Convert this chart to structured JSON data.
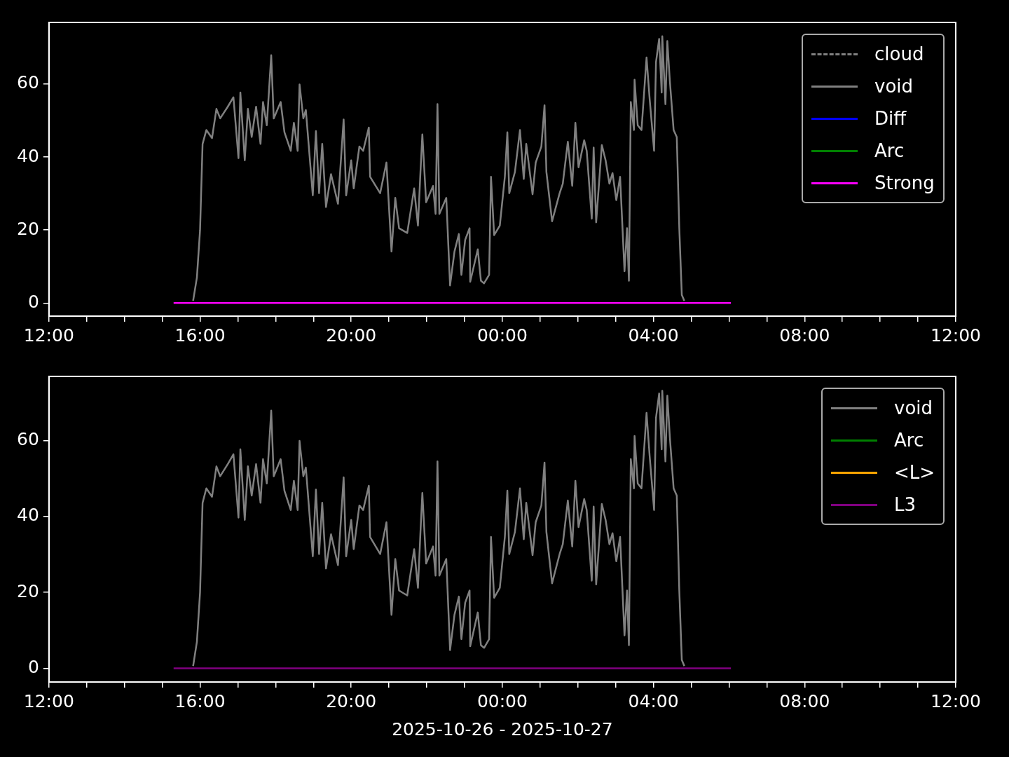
{
  "chart_data": [
    {
      "type": "line",
      "legend": "top right",
      "grid": false,
      "ylim": [
        -3.6,
        76.9
      ],
      "yticks": [
        0,
        20,
        40,
        60
      ],
      "xlim": [
        "2025-10-26T12:00",
        "2025-10-27T12:00"
      ],
      "xticks": [
        {
          "value": "2025-10-26T12:00",
          "label": "12:00"
        },
        {
          "value": "2025-10-26T13:00",
          "label": null
        },
        {
          "value": "2025-10-26T14:00",
          "label": null
        },
        {
          "value": "2025-10-26T15:00",
          "label": null
        },
        {
          "value": "2025-10-26T16:00",
          "label": "16:00"
        },
        {
          "value": "2025-10-26T17:00",
          "label": null
        },
        {
          "value": "2025-10-26T18:00",
          "label": null
        },
        {
          "value": "2025-10-26T19:00",
          "label": null
        },
        {
          "value": "2025-10-26T20:00",
          "label": "20:00"
        },
        {
          "value": "2025-10-26T21:00",
          "label": null
        },
        {
          "value": "2025-10-26T22:00",
          "label": null
        },
        {
          "value": "2025-10-26T23:00",
          "label": null
        },
        {
          "value": "2025-10-27T00:00",
          "label": "00:00"
        },
        {
          "value": "2025-10-27T01:00",
          "label": null
        },
        {
          "value": "2025-10-27T02:00",
          "label": null
        },
        {
          "value": "2025-10-27T03:00",
          "label": null
        },
        {
          "value": "2025-10-27T04:00",
          "label": "04:00"
        },
        {
          "value": "2025-10-27T05:00",
          "label": null
        },
        {
          "value": "2025-10-27T06:00",
          "label": null
        },
        {
          "value": "2025-10-27T07:00",
          "label": null
        },
        {
          "value": "2025-10-27T08:00",
          "label": "08:00"
        },
        {
          "value": "2025-10-27T09:00",
          "label": null
        },
        {
          "value": "2025-10-27T10:00",
          "label": null
        },
        {
          "value": "2025-10-27T11:00",
          "label": null
        },
        {
          "value": "2025-10-27T12:00",
          "label": "12:00"
        }
      ],
      "series": [
        {
          "name": "cloud",
          "color": "#808080",
          "line_style": "dashed",
          "values": [
            null
          ]
        },
        {
          "name": "void",
          "color": "#808080",
          "x": [
            "2025-10-26T15:49",
            "2025-10-26T15:55",
            "2025-10-26T16:00",
            "2025-10-26T16:04",
            "2025-10-26T16:10",
            "2025-10-26T16:19",
            "2025-10-26T16:26",
            "2025-10-26T16:32",
            "2025-10-26T16:44",
            "2025-10-26T16:53",
            "2025-10-26T17:01",
            "2025-10-26T17:04",
            "2025-10-26T17:11",
            "2025-10-26T17:16",
            "2025-10-26T17:22",
            "2025-10-26T17:29",
            "2025-10-26T17:36",
            "2025-10-26T17:40",
            "2025-10-26T17:46",
            "2025-10-26T17:53",
            "2025-10-26T17:57",
            "2025-10-26T18:08",
            "2025-10-26T18:14",
            "2025-10-26T18:24",
            "2025-10-26T18:29",
            "2025-10-26T18:35",
            "2025-10-26T18:38",
            "2025-10-26T18:44",
            "2025-10-26T18:48",
            "2025-10-26T18:59",
            "2025-10-26T19:04",
            "2025-10-26T19:09",
            "2025-10-26T19:14",
            "2025-10-26T19:20",
            "2025-10-26T19:28",
            "2025-10-26T19:39",
            "2025-10-26T19:48",
            "2025-10-26T19:52",
            "2025-10-26T20:00",
            "2025-10-26T20:04",
            "2025-10-26T20:13",
            "2025-10-26T20:19",
            "2025-10-26T20:28",
            "2025-10-26T20:30",
            "2025-10-26T20:46",
            "2025-10-26T20:56",
            "2025-10-26T21:04",
            "2025-10-26T21:10",
            "2025-10-26T21:16",
            "2025-10-26T21:29",
            "2025-10-26T21:40",
            "2025-10-26T21:46",
            "2025-10-26T21:50",
            "2025-10-26T21:53",
            "2025-10-26T21:59",
            "2025-10-26T22:10",
            "2025-10-26T22:14",
            "2025-10-26T22:17",
            "2025-10-26T22:20",
            "2025-10-26T22:31",
            "2025-10-26T22:37",
            "2025-10-26T22:44",
            "2025-10-26T22:51",
            "2025-10-26T22:55",
            "2025-10-26T23:01",
            "2025-10-26T23:08",
            "2025-10-26T23:09",
            "2025-10-26T23:21",
            "2025-10-26T23:26",
            "2025-10-26T23:31",
            "2025-10-26T23:39",
            "2025-10-26T23:42",
            "2025-10-26T23:47",
            "2025-10-26T23:56",
            "2025-10-27T00:04",
            "2025-10-27T00:08",
            "2025-10-27T00:11",
            "2025-10-27T00:20",
            "2025-10-27T00:28",
            "2025-10-27T00:34",
            "2025-10-27T00:38",
            "2025-10-27T00:48",
            "2025-10-27T00:53",
            "2025-10-27T01:02",
            "2025-10-27T01:07",
            "2025-10-27T01:10",
            "2025-10-27T01:19",
            "2025-10-27T01:31",
            "2025-10-27T01:36",
            "2025-10-27T01:44",
            "2025-10-27T01:51",
            "2025-10-27T01:56",
            "2025-10-27T02:01",
            "2025-10-27T02:10",
            "2025-10-27T02:14",
            "2025-10-27T02:22",
            "2025-10-27T02:25",
            "2025-10-27T02:29",
            "2025-10-27T02:38",
            "2025-10-27T02:44",
            "2025-10-27T02:50",
            "2025-10-27T02:55",
            "2025-10-27T03:01",
            "2025-10-27T03:07",
            "2025-10-27T03:14",
            "2025-10-27T03:18",
            "2025-10-27T03:21",
            "2025-10-27T03:24",
            "2025-10-27T03:29",
            "2025-10-27T03:30",
            "2025-10-27T03:35",
            "2025-10-27T03:41",
            "2025-10-27T03:49",
            "2025-10-27T03:54",
            "2025-10-27T04:01",
            "2025-10-27T04:04",
            "2025-10-27T04:09",
            "2025-10-27T04:13",
            "2025-10-27T04:14",
            "2025-10-27T04:19",
            "2025-10-27T04:22",
            "2025-10-27T04:26",
            "2025-10-27T04:32",
            "2025-10-27T04:37",
            "2025-10-27T04:41",
            "2025-10-27T04:45",
            "2025-10-27T04:49"
          ],
          "values": [
            0.6,
            7,
            20,
            43.6,
            47.4,
            45.2,
            53.2,
            50.6,
            53.8,
            56.4,
            39.7,
            57.7,
            39.1,
            53.2,
            45.5,
            53.8,
            43.6,
            55.1,
            48.7,
            67.9,
            50.6,
            55.1,
            46.8,
            41.7,
            49.4,
            41.7,
            59.9,
            50.6,
            52.9,
            29.5,
            47.1,
            30.1,
            43.6,
            26.3,
            35.3,
            27.2,
            50.3,
            29.5,
            39.1,
            31.4,
            42.9,
            41.7,
            48.1,
            34.6,
            30.1,
            38.5,
            14.1,
            28.8,
            20.5,
            19.2,
            31.4,
            21.2,
            35.9,
            46.2,
            27.6,
            32.1,
            24.4,
            54.5,
            24.4,
            28.8,
            4.8,
            14.1,
            18.9,
            7.7,
            17.3,
            20.5,
            5.8,
            14.7,
            6.1,
            5.4,
            7.7,
            34.6,
            18.6,
            21.2,
            34.6,
            46.8,
            30.1,
            35.9,
            47.4,
            34,
            43.6,
            29.8,
            38.5,
            42.9,
            54.2,
            35.9,
            22.4,
            30.1,
            32.7,
            44.2,
            32.1,
            49.4,
            37.2,
            44.6,
            41.7,
            23.1,
            42.6,
            22.1,
            43.3,
            39.1,
            32.7,
            35.6,
            28.2,
            34.6,
            8.7,
            20.5,
            6.1,
            55.1,
            47.4,
            61.2,
            48.7,
            47.4,
            67.3,
            55.8,
            41.7,
            66,
            72.4,
            57.7,
            73.1,
            54.5,
            71.8,
            60.9,
            47.4,
            45.5,
            20.5,
            2.2,
            0.6
          ]
        },
        {
          "name": "Diff",
          "color": "#0000ff",
          "values": [
            null
          ]
        },
        {
          "name": "Arc",
          "color": "#008000",
          "values": [
            null
          ]
        },
        {
          "name": "Strong",
          "color": "#ff00ff",
          "x": [
            "2025-10-26T15:18",
            "2025-10-27T06:03"
          ],
          "values": [
            0,
            0
          ]
        }
      ]
    },
    {
      "type": "line",
      "legend": "top right",
      "grid": false,
      "ylim": [
        -3.6,
        76.9
      ],
      "yticks": [
        0,
        20,
        40,
        60
      ],
      "xlim": [
        "2025-10-26T12:00",
        "2025-10-27T12:00"
      ],
      "xlabel": "2025-10-26 - 2025-10-27",
      "xticks": [
        {
          "value": "2025-10-26T12:00",
          "label": "12:00"
        },
        {
          "value": "2025-10-26T13:00",
          "label": null
        },
        {
          "value": "2025-10-26T14:00",
          "label": null
        },
        {
          "value": "2025-10-26T15:00",
          "label": null
        },
        {
          "value": "2025-10-26T16:00",
          "label": "16:00"
        },
        {
          "value": "2025-10-26T17:00",
          "label": null
        },
        {
          "value": "2025-10-26T18:00",
          "label": null
        },
        {
          "value": "2025-10-26T19:00",
          "label": null
        },
        {
          "value": "2025-10-26T20:00",
          "label": "20:00"
        },
        {
          "value": "2025-10-26T21:00",
          "label": null
        },
        {
          "value": "2025-10-26T22:00",
          "label": null
        },
        {
          "value": "2025-10-26T23:00",
          "label": null
        },
        {
          "value": "2025-10-27T00:00",
          "label": "00:00"
        },
        {
          "value": "2025-10-27T01:00",
          "label": null
        },
        {
          "value": "2025-10-27T02:00",
          "label": null
        },
        {
          "value": "2025-10-27T03:00",
          "label": null
        },
        {
          "value": "2025-10-27T04:00",
          "label": "04:00"
        },
        {
          "value": "2025-10-27T05:00",
          "label": null
        },
        {
          "value": "2025-10-27T06:00",
          "label": null
        },
        {
          "value": "2025-10-27T07:00",
          "label": null
        },
        {
          "value": "2025-10-27T08:00",
          "label": "08:00"
        },
        {
          "value": "2025-10-27T09:00",
          "label": null
        },
        {
          "value": "2025-10-27T10:00",
          "label": null
        },
        {
          "value": "2025-10-27T11:00",
          "label": null
        },
        {
          "value": "2025-10-27T12:00",
          "label": "12:00"
        }
      ],
      "series": [
        {
          "name": "void",
          "color": "#808080",
          "x": [
            "2025-10-26T15:49",
            "2025-10-26T15:55",
            "2025-10-26T16:00",
            "2025-10-26T16:04",
            "2025-10-26T16:10",
            "2025-10-26T16:19",
            "2025-10-26T16:26",
            "2025-10-26T16:32",
            "2025-10-26T16:44",
            "2025-10-26T16:53",
            "2025-10-26T17:01",
            "2025-10-26T17:04",
            "2025-10-26T17:11",
            "2025-10-26T17:16",
            "2025-10-26T17:22",
            "2025-10-26T17:29",
            "2025-10-26T17:36",
            "2025-10-26T17:40",
            "2025-10-26T17:46",
            "2025-10-26T17:53",
            "2025-10-26T17:57",
            "2025-10-26T18:08",
            "2025-10-26T18:14",
            "2025-10-26T18:24",
            "2025-10-26T18:29",
            "2025-10-26T18:35",
            "2025-10-26T18:38",
            "2025-10-26T18:44",
            "2025-10-26T18:48",
            "2025-10-26T18:59",
            "2025-10-26T19:04",
            "2025-10-26T19:09",
            "2025-10-26T19:14",
            "2025-10-26T19:20",
            "2025-10-26T19:28",
            "2025-10-26T19:39",
            "2025-10-26T19:48",
            "2025-10-26T19:52",
            "2025-10-26T20:00",
            "2025-10-26T20:04",
            "2025-10-26T20:13",
            "2025-10-26T20:19",
            "2025-10-26T20:28",
            "2025-10-26T20:30",
            "2025-10-26T20:46",
            "2025-10-26T20:56",
            "2025-10-26T21:04",
            "2025-10-26T21:10",
            "2025-10-26T21:16",
            "2025-10-26T21:29",
            "2025-10-26T21:40",
            "2025-10-26T21:46",
            "2025-10-26T21:50",
            "2025-10-26T21:53",
            "2025-10-26T21:59",
            "2025-10-26T22:10",
            "2025-10-26T22:14",
            "2025-10-26T22:17",
            "2025-10-26T22:20",
            "2025-10-26T22:31",
            "2025-10-26T22:37",
            "2025-10-26T22:44",
            "2025-10-26T22:51",
            "2025-10-26T22:55",
            "2025-10-26T23:01",
            "2025-10-26T23:08",
            "2025-10-26T23:09",
            "2025-10-26T23:21",
            "2025-10-26T23:26",
            "2025-10-26T23:31",
            "2025-10-26T23:39",
            "2025-10-26T23:42",
            "2025-10-26T23:47",
            "2025-10-26T23:56",
            "2025-10-27T00:04",
            "2025-10-27T00:08",
            "2025-10-27T00:11",
            "2025-10-27T00:20",
            "2025-10-27T00:28",
            "2025-10-27T00:34",
            "2025-10-27T00:38",
            "2025-10-27T00:48",
            "2025-10-27T00:53",
            "2025-10-27T01:02",
            "2025-10-27T01:07",
            "2025-10-27T01:10",
            "2025-10-27T01:19",
            "2025-10-27T01:31",
            "2025-10-27T01:36",
            "2025-10-27T01:44",
            "2025-10-27T01:51",
            "2025-10-27T01:56",
            "2025-10-27T02:01",
            "2025-10-27T02:10",
            "2025-10-27T02:14",
            "2025-10-27T02:22",
            "2025-10-27T02:25",
            "2025-10-27T02:29",
            "2025-10-27T02:38",
            "2025-10-27T02:44",
            "2025-10-27T02:50",
            "2025-10-27T02:55",
            "2025-10-27T03:01",
            "2025-10-27T03:07",
            "2025-10-27T03:14",
            "2025-10-27T03:18",
            "2025-10-27T03:21",
            "2025-10-27T03:24",
            "2025-10-27T03:29",
            "2025-10-27T03:30",
            "2025-10-27T03:35",
            "2025-10-27T03:41",
            "2025-10-27T03:49",
            "2025-10-27T03:54",
            "2025-10-27T04:01",
            "2025-10-27T04:04",
            "2025-10-27T04:09",
            "2025-10-27T04:13",
            "2025-10-27T04:14",
            "2025-10-27T04:19",
            "2025-10-27T04:22",
            "2025-10-27T04:26",
            "2025-10-27T04:32",
            "2025-10-27T04:37",
            "2025-10-27T04:41",
            "2025-10-27T04:45",
            "2025-10-27T04:49"
          ],
          "values": [
            0.6,
            7,
            20,
            43.6,
            47.4,
            45.2,
            53.2,
            50.6,
            53.8,
            56.4,
            39.7,
            57.7,
            39.1,
            53.2,
            45.5,
            53.8,
            43.6,
            55.1,
            48.7,
            67.9,
            50.6,
            55.1,
            46.8,
            41.7,
            49.4,
            41.7,
            59.9,
            50.6,
            52.9,
            29.5,
            47.1,
            30.1,
            43.6,
            26.3,
            35.3,
            27.2,
            50.3,
            29.5,
            39.1,
            31.4,
            42.9,
            41.7,
            48.1,
            34.6,
            30.1,
            38.5,
            14.1,
            28.8,
            20.5,
            19.2,
            31.4,
            21.2,
            35.9,
            46.2,
            27.6,
            32.1,
            24.4,
            54.5,
            24.4,
            28.8,
            4.8,
            14.1,
            18.9,
            7.7,
            17.3,
            20.5,
            5.8,
            14.7,
            6.1,
            5.4,
            7.7,
            34.6,
            18.6,
            21.2,
            34.6,
            46.8,
            30.1,
            35.9,
            47.4,
            34,
            43.6,
            29.8,
            38.5,
            42.9,
            54.2,
            35.9,
            22.4,
            30.1,
            32.7,
            44.2,
            32.1,
            49.4,
            37.2,
            44.6,
            41.7,
            23.1,
            42.6,
            22.1,
            43.3,
            39.1,
            32.7,
            35.6,
            28.2,
            34.6,
            8.7,
            20.5,
            6.1,
            55.1,
            47.4,
            61.2,
            48.7,
            47.4,
            67.3,
            55.8,
            41.7,
            66,
            72.4,
            57.7,
            73.1,
            54.5,
            71.8,
            60.9,
            47.4,
            45.5,
            20.5,
            2.2,
            0.6
          ]
        },
        {
          "name": "Arc",
          "color": "#008000",
          "values": [
            null
          ]
        },
        {
          "name": "<L>",
          "color": "#ffa500",
          "values": [
            null
          ]
        },
        {
          "name": "L3",
          "color": "#800080",
          "x": [
            "2025-10-26T15:18",
            "2025-10-27T06:03"
          ],
          "values": [
            0,
            0
          ]
        }
      ]
    }
  ]
}
